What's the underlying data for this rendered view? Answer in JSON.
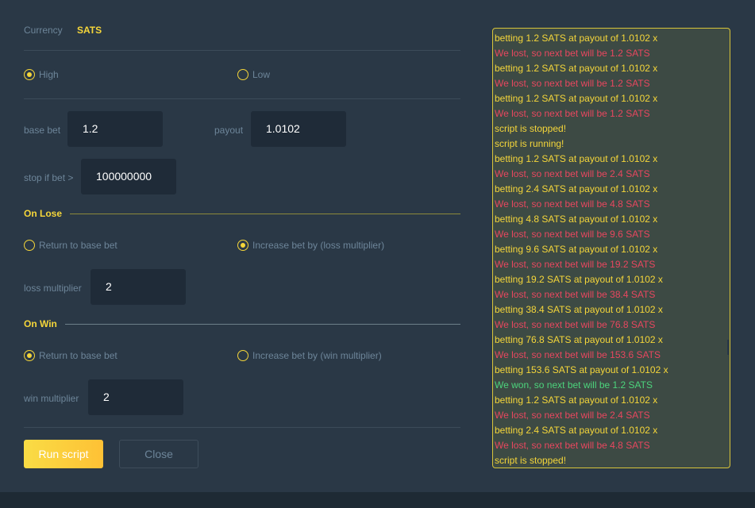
{
  "currency": {
    "label": "Currency",
    "value": "SATS"
  },
  "direction": {
    "options": [
      {
        "label": "High",
        "selected": true
      },
      {
        "label": "Low",
        "selected": false
      }
    ]
  },
  "fields": {
    "base_bet_label": "base bet",
    "base_bet": "1.2",
    "payout_label": "payout",
    "payout": "1.0102",
    "stop_label": "stop if bet >",
    "stop": "100000000"
  },
  "on_lose": {
    "title": "On Lose",
    "options": [
      {
        "label": "Return to base bet",
        "selected": false
      },
      {
        "label": "Increase bet by (loss multiplier)",
        "selected": true
      }
    ],
    "multiplier_label": "loss multiplier",
    "multiplier": "2"
  },
  "on_win": {
    "title": "On Win",
    "options": [
      {
        "label": "Return to base bet",
        "selected": true
      },
      {
        "label": "Increase bet by (win multiplier)",
        "selected": false
      }
    ],
    "multiplier_label": "win multiplier",
    "multiplier": "2"
  },
  "buttons": {
    "run": "Run script",
    "close": "Close"
  },
  "colors": {
    "info": "#f5d63a",
    "loss": "#e8475f",
    "win": "#4cd47c"
  },
  "log": [
    {
      "t": "betting 1.2 SATS at payout of 1.0102 x",
      "k": "info"
    },
    {
      "t": "We lost, so next bet will be 1.2 SATS",
      "k": "loss"
    },
    {
      "t": "betting 1.2 SATS at payout of 1.0102 x",
      "k": "info"
    },
    {
      "t": "We lost, so next bet will be 1.2 SATS",
      "k": "loss"
    },
    {
      "t": "betting 1.2 SATS at payout of 1.0102 x",
      "k": "info"
    },
    {
      "t": "We lost, so next bet will be 1.2 SATS",
      "k": "loss"
    },
    {
      "t": "script is stopped!",
      "k": "info"
    },
    {
      "t": "script is running!",
      "k": "info"
    },
    {
      "t": "betting 1.2 SATS at payout of 1.0102 x",
      "k": "info"
    },
    {
      "t": "We lost, so next bet will be 2.4 SATS",
      "k": "loss"
    },
    {
      "t": "betting 2.4 SATS at payout of 1.0102 x",
      "k": "info"
    },
    {
      "t": "We lost, so next bet will be 4.8 SATS",
      "k": "loss"
    },
    {
      "t": "betting 4.8 SATS at payout of 1.0102 x",
      "k": "info"
    },
    {
      "t": "We lost, so next bet will be 9.6 SATS",
      "k": "loss"
    },
    {
      "t": "betting 9.6 SATS at payout of 1.0102 x",
      "k": "info"
    },
    {
      "t": "We lost, so next bet will be 19.2 SATS",
      "k": "loss"
    },
    {
      "t": "betting 19.2 SATS at payout of 1.0102 x",
      "k": "info"
    },
    {
      "t": "We lost, so next bet will be 38.4 SATS",
      "k": "loss"
    },
    {
      "t": "betting 38.4 SATS at payout of 1.0102 x",
      "k": "info"
    },
    {
      "t": "We lost, so next bet will be 76.8 SATS",
      "k": "loss"
    },
    {
      "t": "betting 76.8 SATS at payout of 1.0102 x",
      "k": "info"
    },
    {
      "t": "We lost, so next bet will be 153.6 SATS",
      "k": "loss"
    },
    {
      "t": "betting 153.6 SATS at payout of 1.0102 x",
      "k": "info"
    },
    {
      "t": "We won, so next bet will be 1.2 SATS",
      "k": "win"
    },
    {
      "t": "betting 1.2 SATS at payout of 1.0102 x",
      "k": "info"
    },
    {
      "t": "We lost, so next bet will be 2.4 SATS",
      "k": "loss"
    },
    {
      "t": "betting 2.4 SATS at payout of 1.0102 x",
      "k": "info"
    },
    {
      "t": "We lost, so next bet will be 4.8 SATS",
      "k": "loss"
    },
    {
      "t": "script is stopped!",
      "k": "info"
    }
  ]
}
